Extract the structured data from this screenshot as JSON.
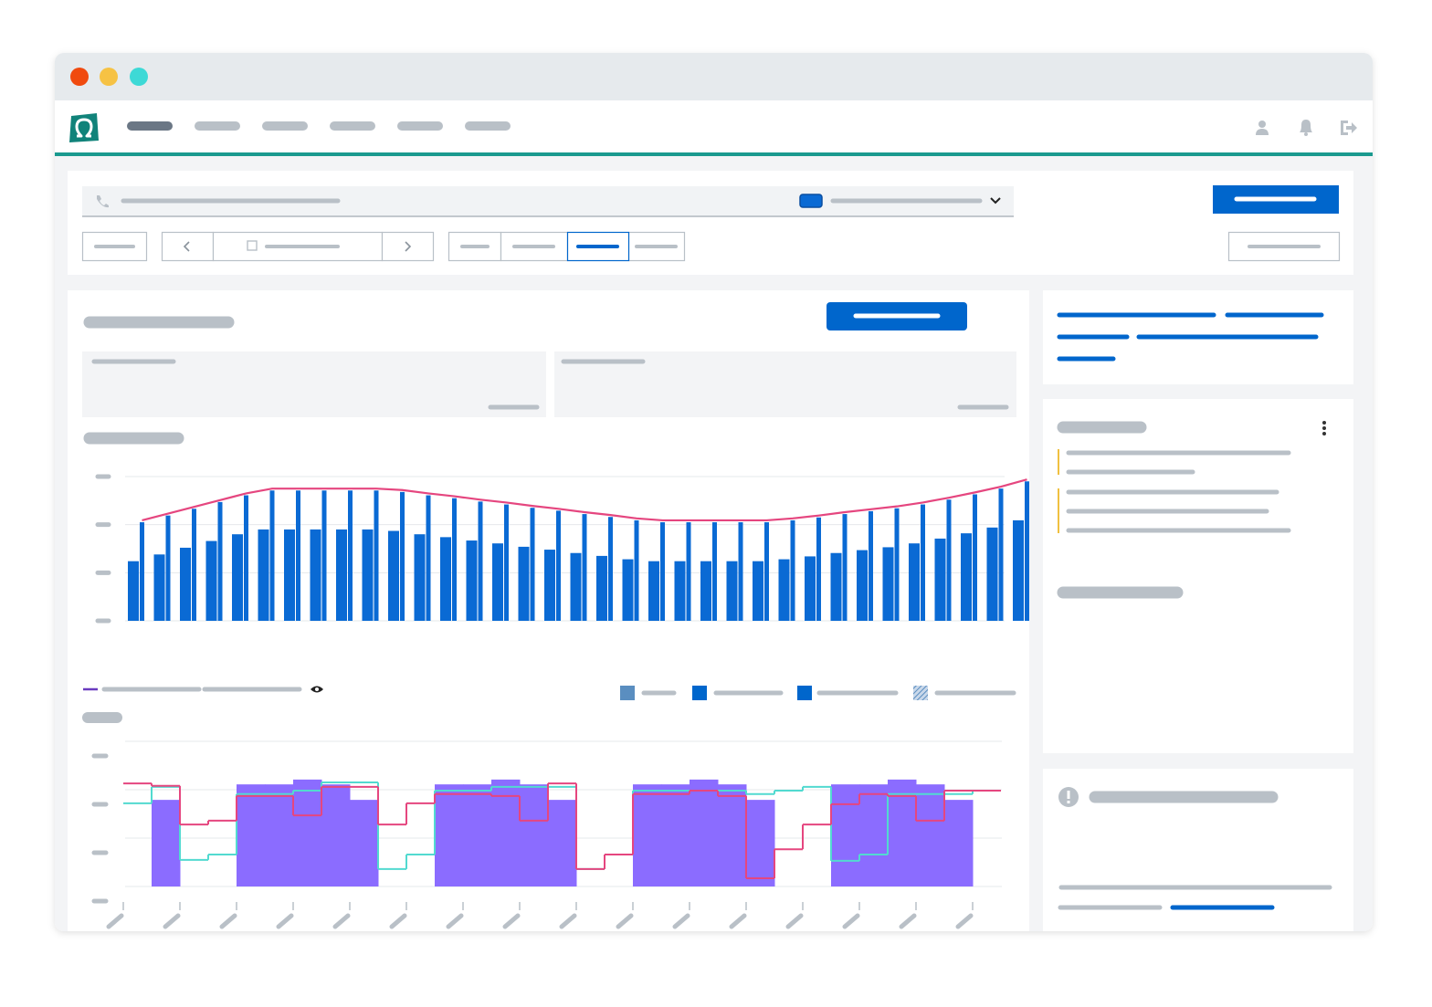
{
  "chart_data": [
    {
      "type": "bar",
      "categories": [
        null,
        null,
        null,
        null,
        null,
        null,
        null,
        null,
        null,
        null,
        null,
        null,
        null,
        null,
        null,
        null,
        null,
        null,
        null,
        null,
        null,
        null,
        null,
        null,
        null,
        null,
        null,
        null,
        null,
        null,
        null,
        null,
        null,
        null,
        null
      ],
      "ylim": [
        0,
        3
      ],
      "yticks": [
        0,
        1,
        2,
        3
      ],
      "grid": true,
      "series": [
        {
          "style": "bar",
          "color": "#0a6ad4",
          "values": [
            1.24,
            1.38,
            1.52,
            1.66,
            1.8,
            1.9,
            1.9,
            1.9,
            1.9,
            1.9,
            1.87,
            1.8,
            1.74,
            1.67,
            1.61,
            1.54,
            1.48,
            1.41,
            1.35,
            1.28,
            1.24,
            1.24,
            1.24,
            1.24,
            1.24,
            1.28,
            1.34,
            1.41,
            1.47,
            1.53,
            1.61,
            1.71,
            1.82,
            1.94,
            2.09
          ]
        },
        {
          "style": "bar",
          "color": "#0a6ad4",
          "values": [
            2.05,
            2.19,
            2.33,
            2.47,
            2.61,
            2.71,
            2.71,
            2.71,
            2.71,
            2.71,
            2.68,
            2.61,
            2.55,
            2.48,
            2.42,
            2.35,
            2.29,
            2.22,
            2.16,
            2.09,
            2.05,
            2.05,
            2.05,
            2.05,
            2.05,
            2.09,
            2.15,
            2.22,
            2.28,
            2.34,
            2.42,
            2.52,
            2.63,
            2.75,
            2.9
          ]
        },
        {
          "style": "line",
          "color": "#e5467f",
          "values": [
            2.09,
            2.23,
            2.37,
            2.51,
            2.65,
            2.75,
            2.75,
            2.75,
            2.75,
            2.75,
            2.72,
            2.65,
            2.59,
            2.52,
            2.46,
            2.39,
            2.33,
            2.26,
            2.2,
            2.13,
            2.09,
            2.09,
            2.09,
            2.09,
            2.09,
            2.13,
            2.19,
            2.26,
            2.32,
            2.38,
            2.46,
            2.56,
            2.67,
            2.79,
            2.94
          ]
        }
      ]
    },
    {
      "type": "step",
      "categories": [
        null,
        null,
        null,
        null,
        null,
        null,
        null,
        null,
        null,
        null,
        null,
        null,
        null,
        null,
        null,
        null,
        null,
        null,
        null,
        null,
        null,
        null,
        null,
        null,
        null,
        null,
        null,
        null,
        null,
        null,
        null
      ],
      "ylim": [
        0,
        3
      ],
      "yticks": [
        0,
        1,
        2,
        3
      ],
      "grid": true,
      "series": [
        {
          "style": "bar",
          "color": "#8b6cff",
          "values": [
            0,
            1.79,
            0,
            0,
            2.11,
            2.11,
            2.21,
            2.11,
            1.79,
            0,
            0,
            2.11,
            2.11,
            2.21,
            2.11,
            1.79,
            0,
            0,
            2.11,
            2.11,
            2.21,
            2.11,
            1.79,
            0,
            0,
            2.11,
            2.11,
            2.21,
            2.11,
            1.79,
            0
          ]
        },
        {
          "style": "step",
          "color": "#52dad0",
          "values": [
            1.72,
            2.06,
            0.55,
            0.66,
            1.91,
            1.91,
            1.98,
            2.15,
            2.15,
            0.36,
            0.66,
            1.98,
            1.98,
            2.06,
            2.06,
            2.06,
            0.36,
            0.66,
            1.98,
            1.98,
            1.98,
            1.98,
            1.91,
            1.98,
            2.06,
            0.53,
            0.66,
            1.91,
            1.91,
            1.91,
            1.98
          ]
        },
        {
          "style": "step",
          "color": "#e5467f",
          "values": [
            2.13,
            2.08,
            1.28,
            1.36,
            1.87,
            1.87,
            1.47,
            2.06,
            2.06,
            1.28,
            1.72,
            1.91,
            1.91,
            1.87,
            1.36,
            2.13,
            0.36,
            0.66,
            1.91,
            1.91,
            1.98,
            1.87,
            0.17,
            0.77,
            1.28,
            1.7,
            1.91,
            1.87,
            1.36,
            1.98,
            1.98
          ]
        }
      ]
    }
  ]
}
